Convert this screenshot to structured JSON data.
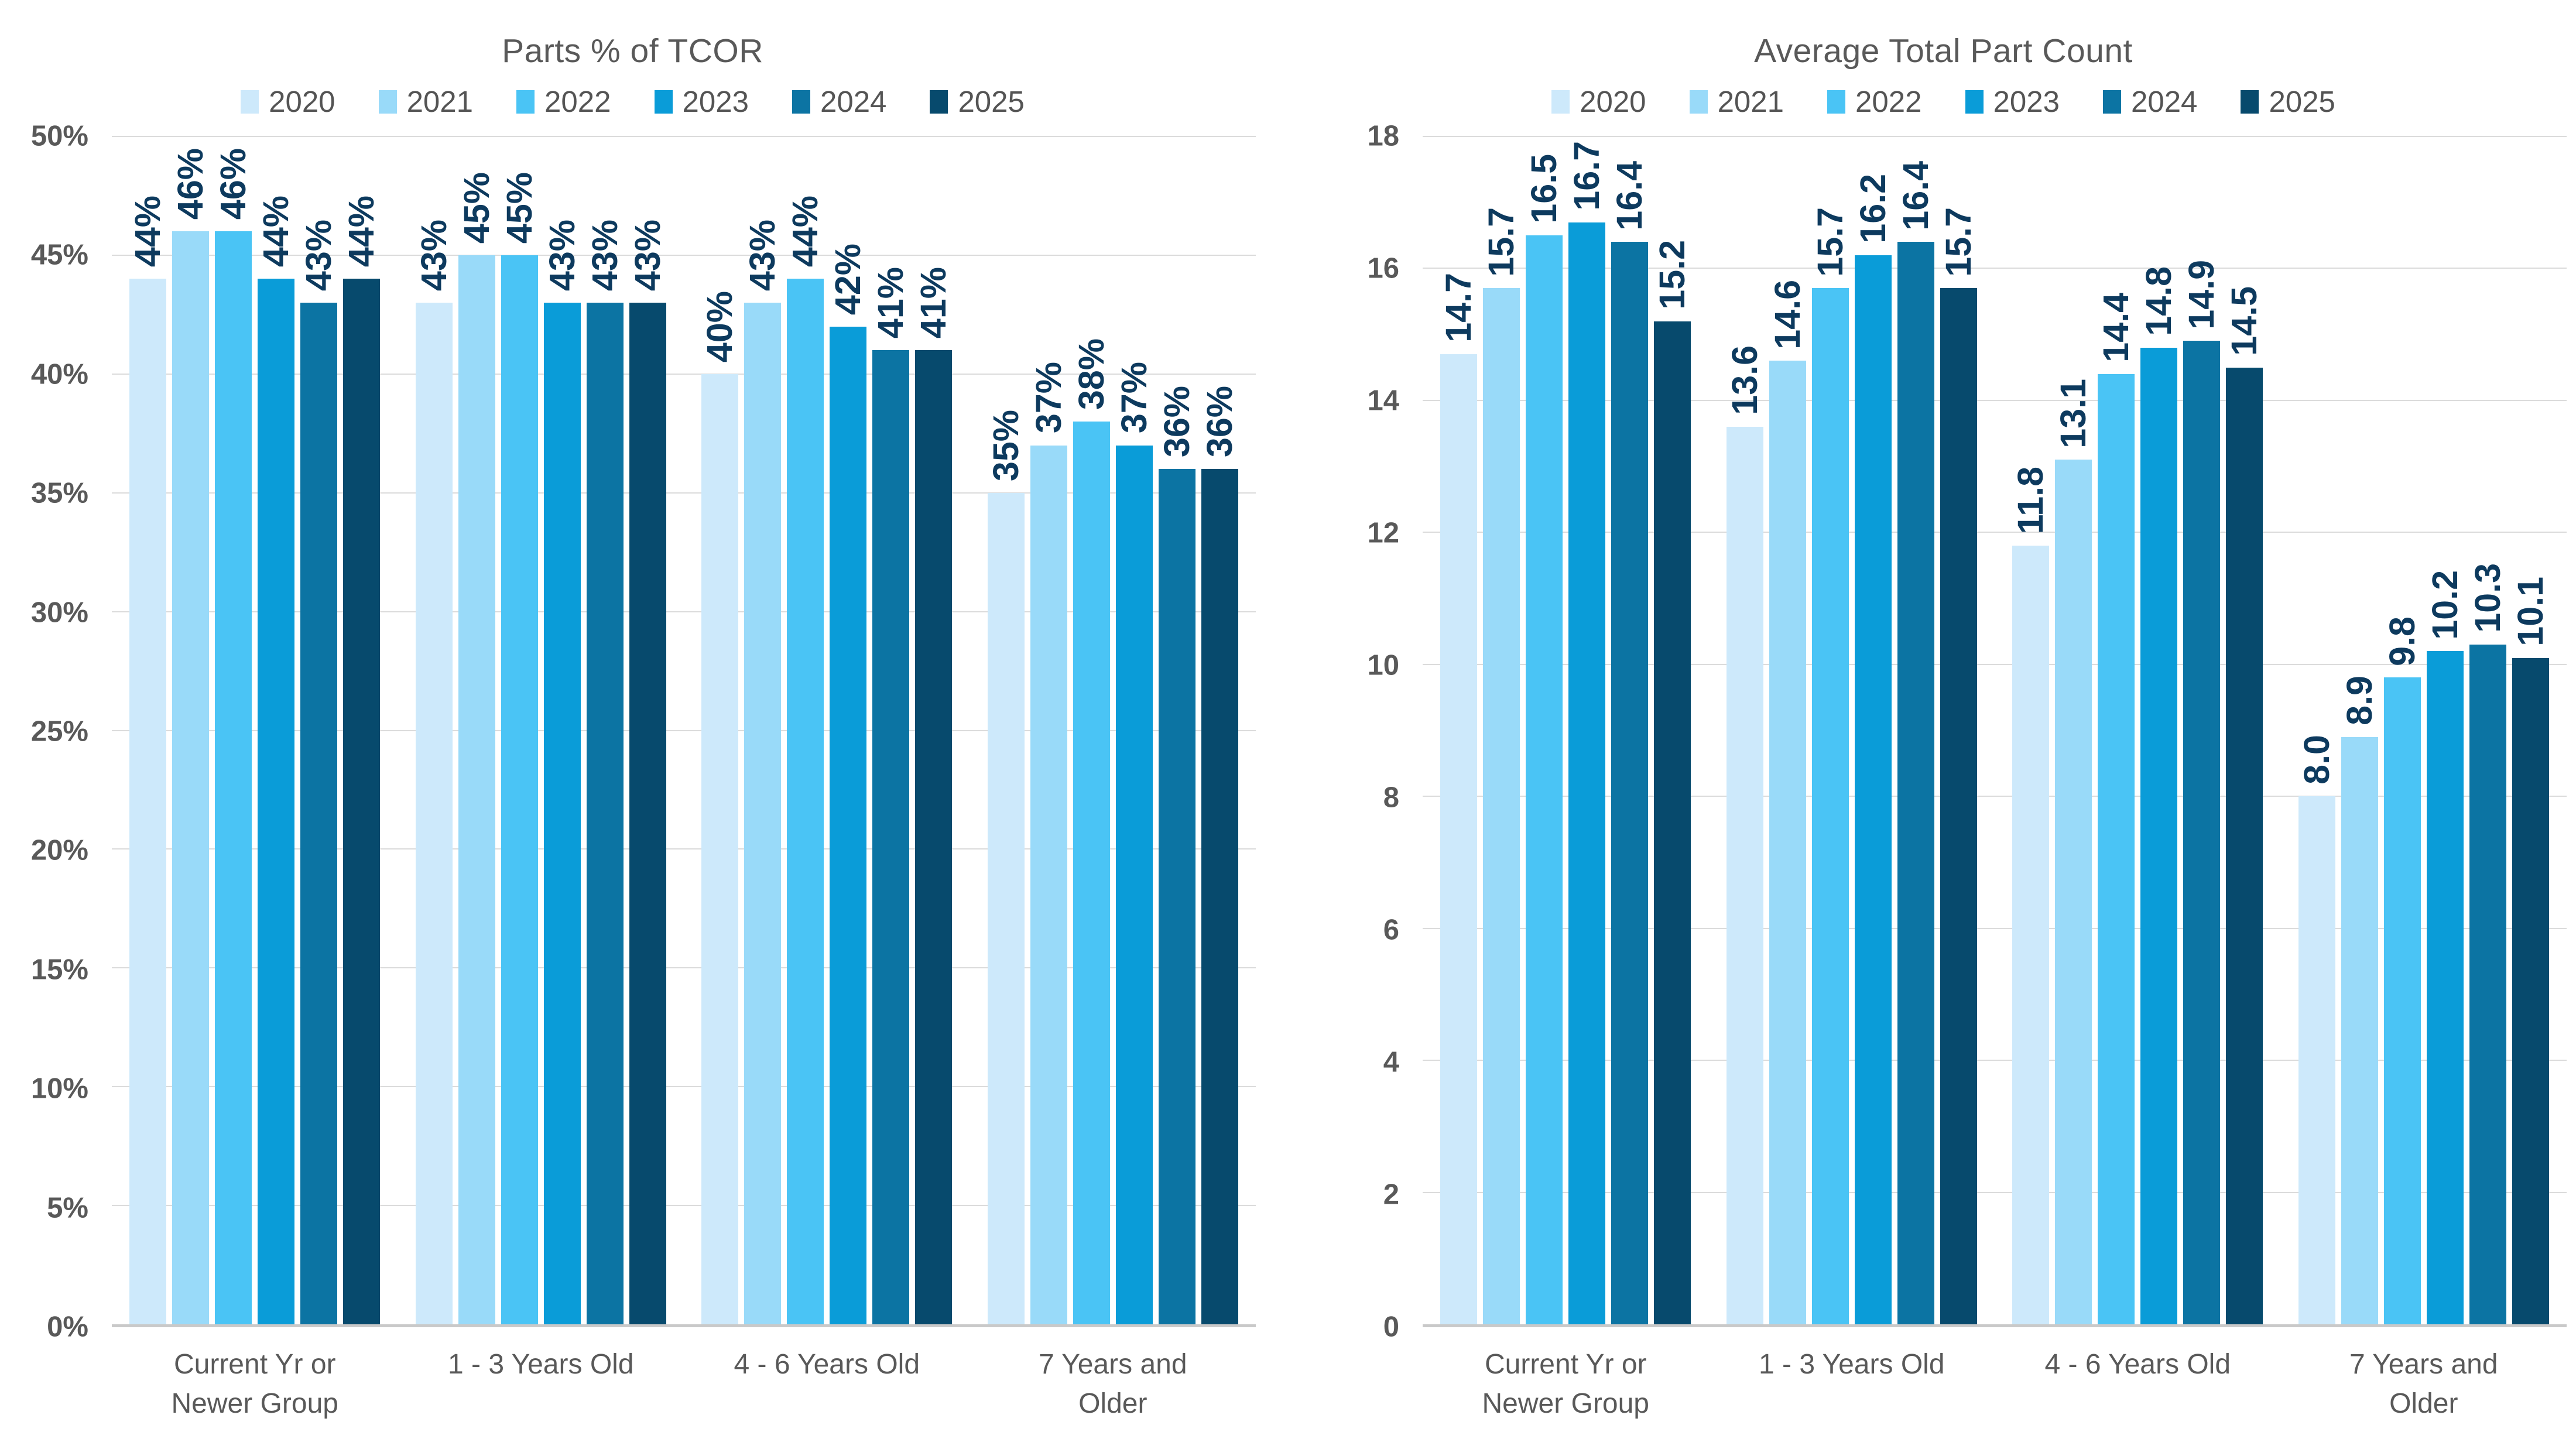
{
  "colors": {
    "series": [
      "#CDE9FB",
      "#99DAF9",
      "#4AC4F5",
      "#0A9CD8",
      "#0C74A3",
      "#074A6D"
    ],
    "data_label": "#0D3A5E",
    "axis_text": "#595959",
    "legend_text": "#545454",
    "title_text": "#595959",
    "gridline": "#DBDBDB",
    "axis_line": "#C9C9C9"
  },
  "legend_years": [
    "2020",
    "2021",
    "2022",
    "2023",
    "2024",
    "2025"
  ],
  "chart_data": [
    {
      "type": "bar",
      "title": "Parts % of TCOR",
      "categories": [
        "Current Yr or Newer Group",
        "1 - 3 Years Old",
        "4 - 6 Years Old",
        "7 Years and Older"
      ],
      "series": [
        {
          "name": "2020",
          "values": [
            44,
            43,
            40,
            35
          ]
        },
        {
          "name": "2021",
          "values": [
            46,
            45,
            43,
            37
          ]
        },
        {
          "name": "2022",
          "values": [
            46,
            45,
            44,
            38
          ]
        },
        {
          "name": "2023",
          "values": [
            44,
            43,
            42,
            37
          ]
        },
        {
          "name": "2024",
          "values": [
            43,
            43,
            41,
            36
          ]
        },
        {
          "name": "2025",
          "values": [
            44,
            43,
            41,
            36
          ]
        }
      ],
      "ylim": [
        0,
        50
      ],
      "ytick_step": 5,
      "tick_suffix": "%",
      "value_suffix": "%",
      "value_decimals": 0,
      "grid": true,
      "legend_position": "top"
    },
    {
      "type": "bar",
      "title": "Average Total Part Count",
      "categories": [
        "Current Yr or Newer Group",
        "1 - 3 Years Old",
        "4 - 6 Years Old",
        "7 Years and Older"
      ],
      "series": [
        {
          "name": "2020",
          "values": [
            14.7,
            13.6,
            11.8,
            8.0
          ]
        },
        {
          "name": "2021",
          "values": [
            15.7,
            14.6,
            13.1,
            8.9
          ]
        },
        {
          "name": "2022",
          "values": [
            16.5,
            15.7,
            14.4,
            9.8
          ]
        },
        {
          "name": "2023",
          "values": [
            16.7,
            16.2,
            14.8,
            10.2
          ]
        },
        {
          "name": "2024",
          "values": [
            16.4,
            16.4,
            14.9,
            10.3
          ]
        },
        {
          "name": "2025",
          "values": [
            15.2,
            15.7,
            14.5,
            10.1
          ]
        }
      ],
      "ylim": [
        0,
        18
      ],
      "ytick_step": 2,
      "tick_suffix": "",
      "value_suffix": "",
      "value_decimals": 1,
      "grid": true,
      "legend_position": "top"
    }
  ]
}
